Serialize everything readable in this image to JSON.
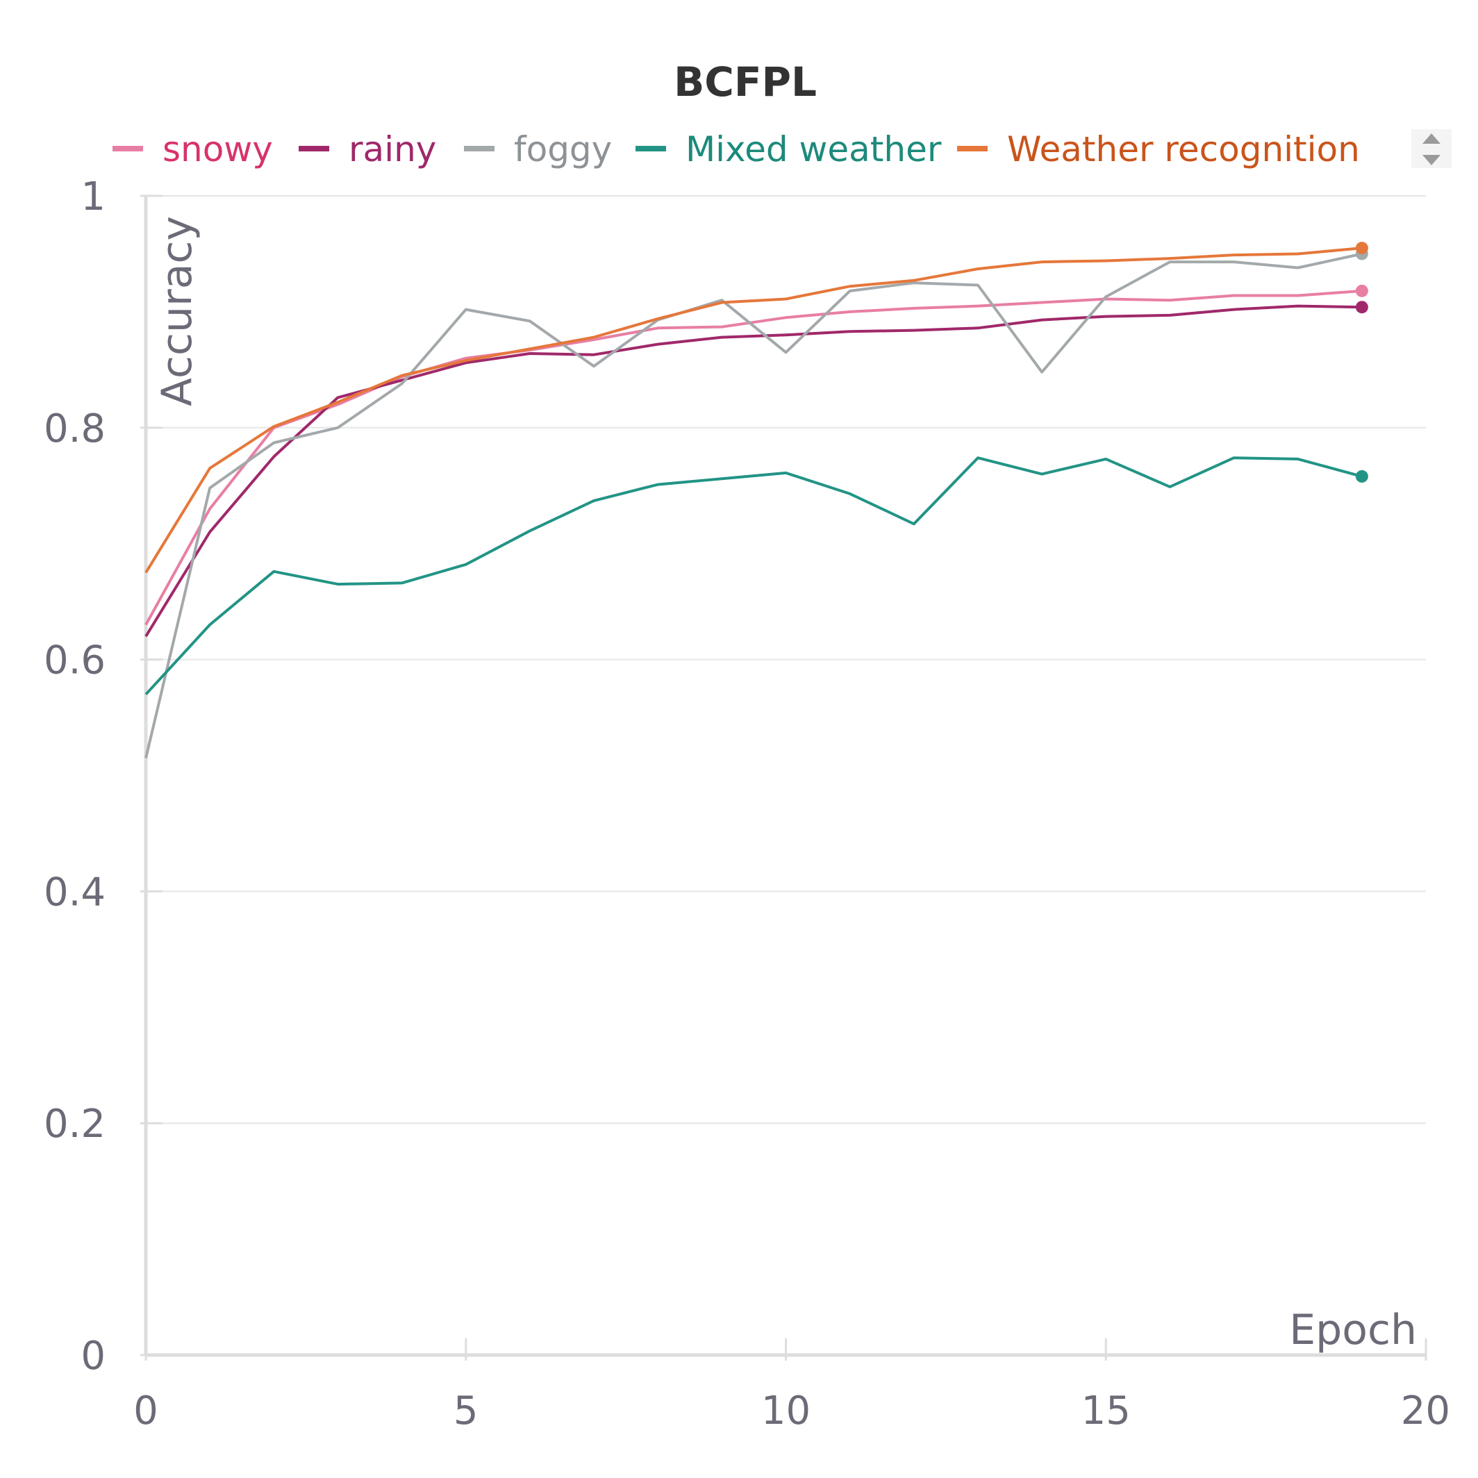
{
  "chart_data": {
    "type": "line",
    "title": "BCFPL",
    "xlabel": "Epoch",
    "ylabel": "Accuracy",
    "xlim": [
      0,
      20
    ],
    "ylim": [
      0,
      1
    ],
    "x_ticks": [
      "0",
      "5",
      "10",
      "15",
      "20"
    ],
    "y_ticks": [
      "0",
      "0.2",
      "0.4",
      "0.6",
      "0.8",
      "1"
    ],
    "grid": true,
    "legend_position": "top",
    "x": [
      0,
      1,
      2,
      3,
      4,
      5,
      6,
      7,
      8,
      9,
      10,
      11,
      12,
      13,
      14,
      15,
      16,
      17,
      18,
      19
    ],
    "series": [
      {
        "name": "snowy",
        "color": "#e87ea4",
        "text_color": "#d6336c",
        "values": [
          0.63,
          0.73,
          0.8,
          0.82,
          0.844,
          0.86,
          0.867,
          0.876,
          0.886,
          0.887,
          0.895,
          0.9,
          0.903,
          0.905,
          0.908,
          0.911,
          0.91,
          0.914,
          0.914,
          0.918
        ]
      },
      {
        "name": "rainy",
        "color": "#a0286a",
        "text_color": "#a0286a",
        "values": [
          0.62,
          0.71,
          0.775,
          0.826,
          0.841,
          0.856,
          0.864,
          0.863,
          0.872,
          0.878,
          0.88,
          0.883,
          0.884,
          0.886,
          0.893,
          0.896,
          0.897,
          0.902,
          0.905,
          0.904
        ]
      },
      {
        "name": "foggy",
        "color": "#a3a8ab",
        "text_color": "#8d9296",
        "values": [
          0.515,
          0.748,
          0.787,
          0.8,
          0.838,
          0.902,
          0.892,
          0.853,
          0.893,
          0.91,
          0.865,
          0.918,
          0.925,
          0.923,
          0.848,
          0.913,
          0.943,
          0.943,
          0.938,
          0.95
        ]
      },
      {
        "name": "Mixed weather",
        "color": "#229485",
        "text_color": "#1c8a7b",
        "values": [
          0.57,
          0.63,
          0.676,
          0.665,
          0.666,
          0.682,
          0.711,
          0.737,
          0.751,
          0.756,
          0.761,
          0.743,
          0.717,
          0.774,
          0.76,
          0.773,
          0.749,
          0.774,
          0.773,
          0.758
        ]
      },
      {
        "name": "Weather recognition",
        "color": "#e5773a",
        "text_color": "#c9541b",
        "values": [
          0.675,
          0.765,
          0.801,
          0.822,
          0.845,
          0.858,
          0.868,
          0.878,
          0.894,
          0.908,
          0.911,
          0.922,
          0.927,
          0.937,
          0.943,
          0.944,
          0.946,
          0.949,
          0.95,
          0.955
        ]
      }
    ]
  }
}
